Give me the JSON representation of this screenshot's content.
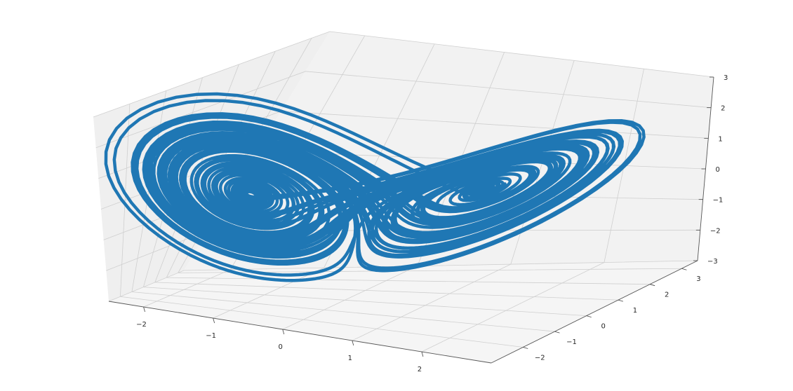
{
  "chart_data": {
    "type": "line",
    "projection": "3d",
    "series_color": "#1f77b4",
    "pane_color": "#f2f2f2",
    "grid": true,
    "xlim": [
      -2.5,
      3
    ],
    "ylim": [
      -3,
      3.5
    ],
    "zlim": [
      -3,
      3
    ],
    "x_ticks": [
      -2,
      -1,
      0,
      1,
      2
    ],
    "y_ticks": [
      -2,
      -1,
      0,
      1,
      2,
      3
    ],
    "z_ticks": [
      -3,
      -2,
      -1,
      0,
      1,
      2,
      3
    ],
    "x_tick_labels": [
      "−2",
      "−1",
      "0",
      "1",
      "2"
    ],
    "y_tick_labels": [
      "−2",
      "−1",
      "0",
      "1",
      "2",
      "3"
    ],
    "z_tick_labels": [
      "−3",
      "−2",
      "−1",
      "0",
      "1",
      "2",
      "3"
    ],
    "attractor": {
      "wing_centers": [
        [
          -1.3,
          -1.0,
          0.05
        ],
        [
          1.3,
          1.0,
          0.05
        ]
      ],
      "outer_radius": 1.35,
      "inner_hole_radius": 0.22
    }
  }
}
